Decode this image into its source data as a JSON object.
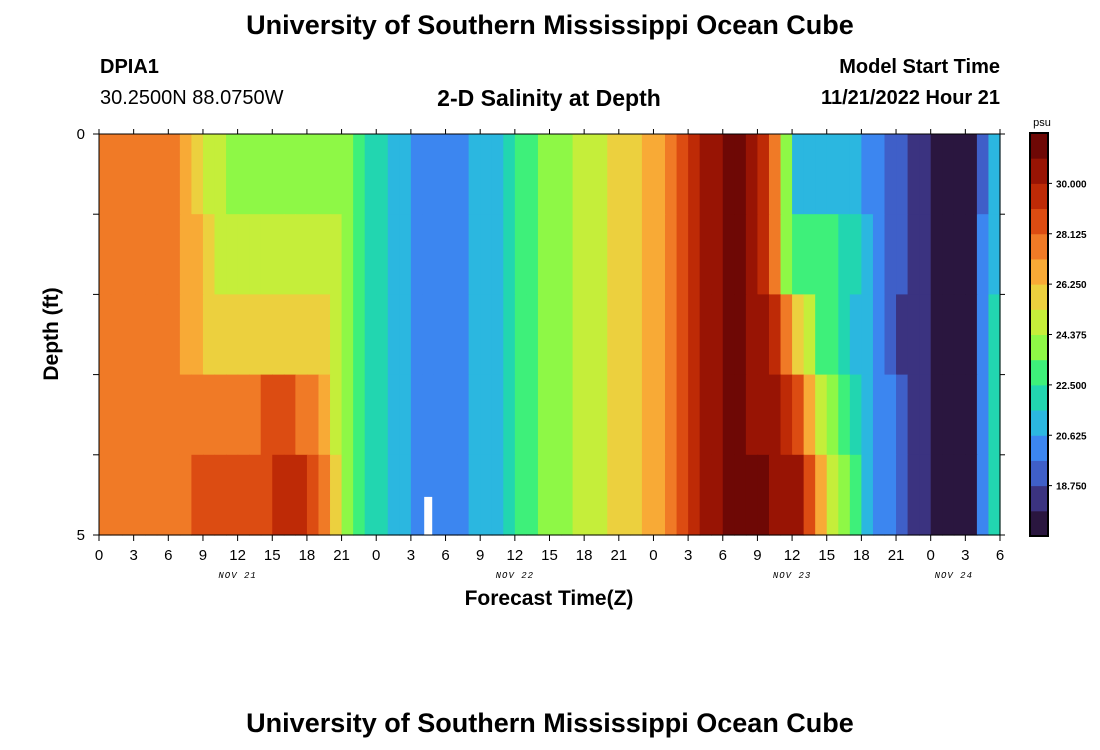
{
  "header": {
    "title": "University of Southern Mississippi Ocean Cube",
    "station_id": "DPIA1",
    "station_coords": "30.2500N  88.0750W",
    "plot_title": "2-D Salinity at Depth",
    "model_start_label": "Model Start Time",
    "model_start_value": "11/21/2022 Hour 21"
  },
  "footer": {
    "title": "University of Southern Mississippi Ocean Cube"
  },
  "chart_data": {
    "type": "heatmap",
    "title": "2-D Salinity at Depth",
    "xlabel": "Forecast Time(Z)",
    "ylabel": "Depth (ft)",
    "x_tick_labels": [
      "0",
      "3",
      "6",
      "9",
      "12",
      "15",
      "18",
      "21",
      "0",
      "3",
      "6",
      "9",
      "12",
      "15",
      "18",
      "21",
      "0",
      "3",
      "6",
      "9",
      "12",
      "15",
      "18",
      "21",
      "0",
      "3",
      "6"
    ],
    "date_labels": [
      "NOV 21",
      "NOV 22",
      "NOV 23",
      "NOV 24"
    ],
    "y_tick_labels": [
      "0",
      "5"
    ],
    "ylim": [
      0,
      5
    ],
    "colorbar": {
      "unit": "psu",
      "tick_labels": [
        "30.000",
        "28.125",
        "26.250",
        "24.375",
        "22.500",
        "20.625",
        "18.750"
      ],
      "range": [
        16.875,
        31.875
      ],
      "colors": [
        "#2a163f",
        "#3b3380",
        "#3f5fc8",
        "#3c86f0",
        "#2bb7e0",
        "#22d6b0",
        "#3ef07a",
        "#8ef846",
        "#c5ee3a",
        "#ecd03e",
        "#f8aa36",
        "#f07a26",
        "#dc4c12",
        "#be2a06",
        "#981404",
        "#6e0805"
      ]
    },
    "gap_marker": {
      "hour": 28.5,
      "depth_from": 4.5,
      "depth_to": 5
    }
  }
}
